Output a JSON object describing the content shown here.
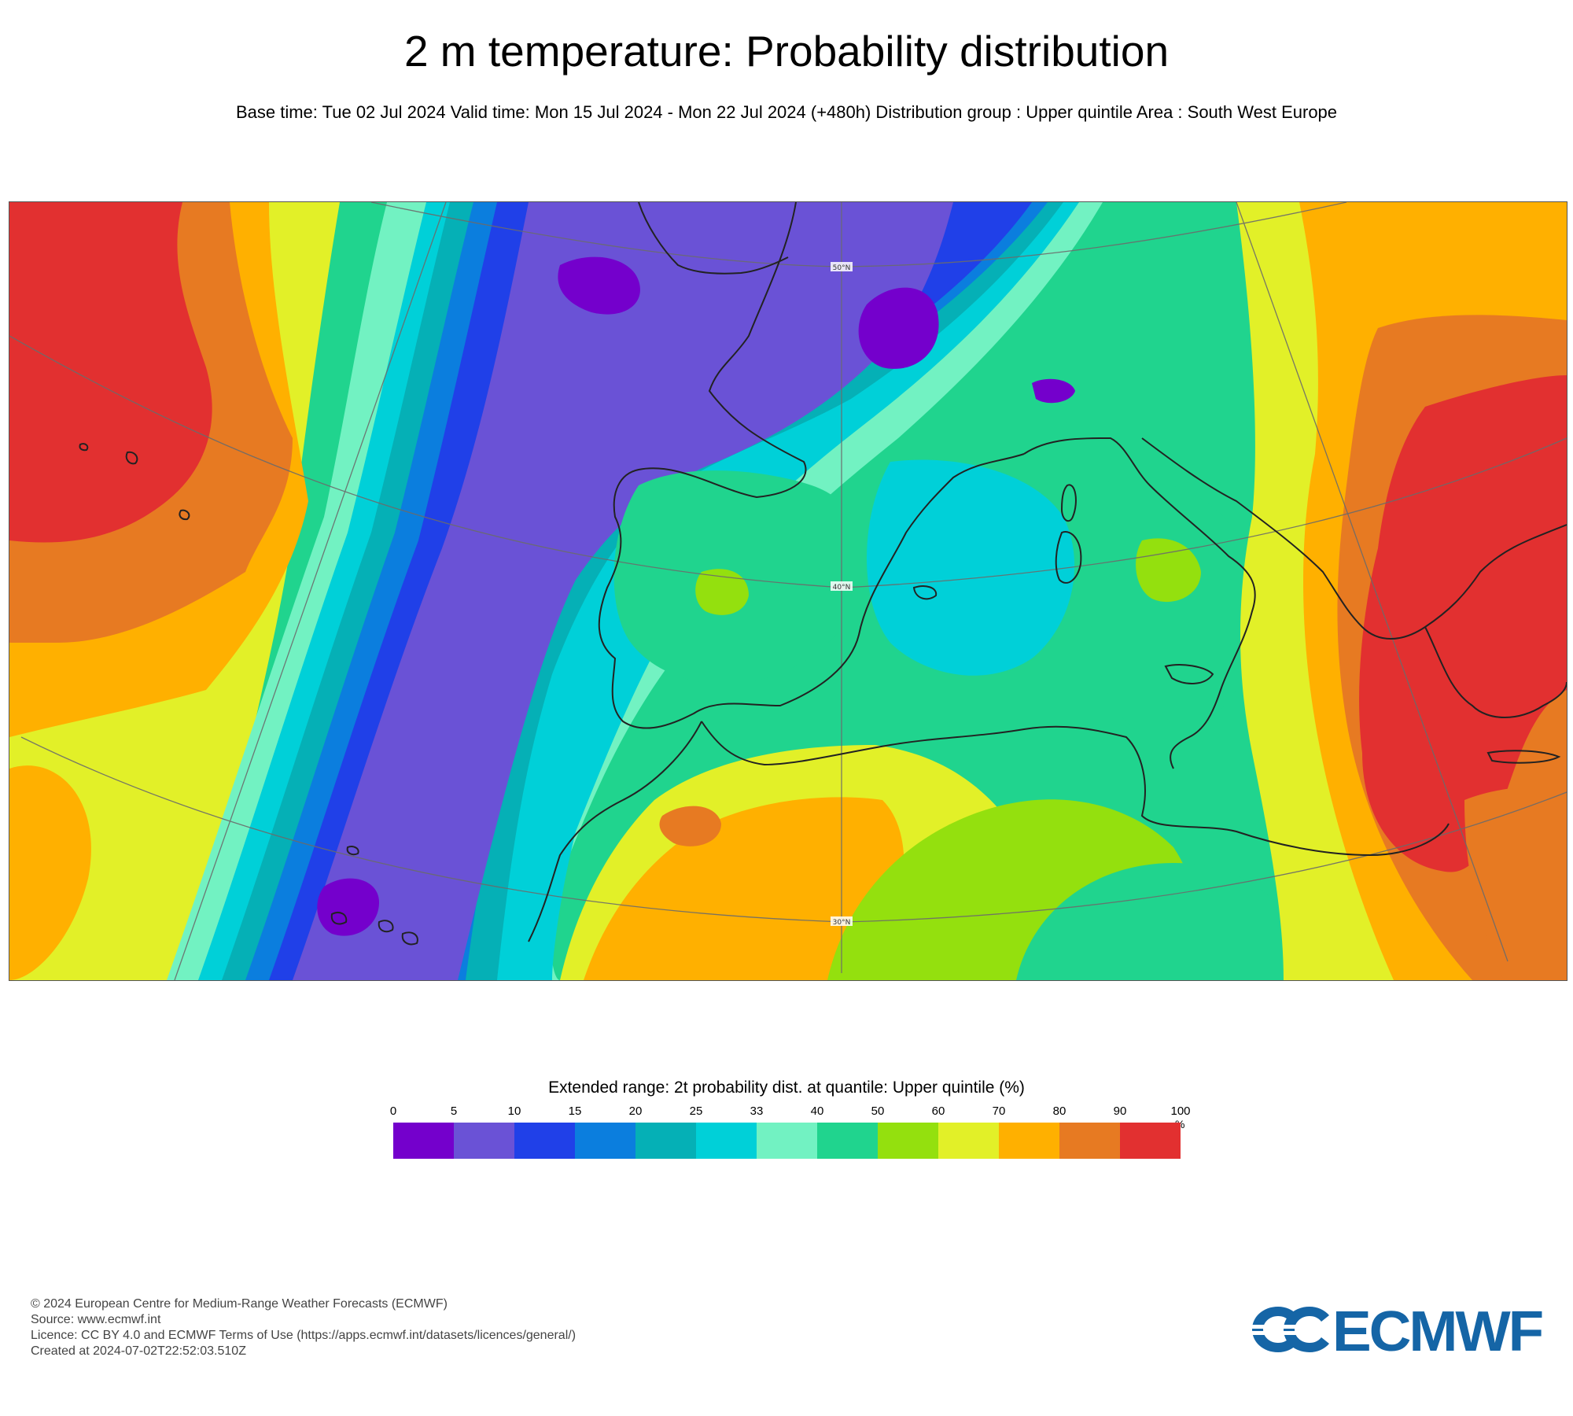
{
  "title": "2 m temperature: Probability distribution",
  "subtitle": "Base time: Tue 02 Jul 2024 Valid time: Mon 15 Jul 2024 - Mon 22 Jul 2024 (+480h) Distribution group : Upper quintile Area : South West Europe",
  "map": {
    "area": "South West Europe",
    "grid_labels": [
      "50°N",
      "40°N",
      "30°N"
    ],
    "colors": {
      "land_outline": "#222222",
      "graticule": "#6b6b6b"
    }
  },
  "legend": {
    "title": "Extended range: 2t probability dist. at quantile: Upper quintile (%)",
    "ticks": [
      "0",
      "5",
      "10",
      "15",
      "20",
      "25",
      "33",
      "40",
      "50",
      "60",
      "70",
      "80",
      "90",
      "100"
    ],
    "unit": "%",
    "colors": [
      "#7400cc",
      "#6a52d6",
      "#2040e8",
      "#0b7ede",
      "#05b0b6",
      "#00d0d8",
      "#72f2c2",
      "#20d48e",
      "#94e00e",
      "#e2f028",
      "#ffb000",
      "#e77a22",
      "#e23030"
    ]
  },
  "footer": {
    "lines": [
      "© 2024 European Centre for Medium-Range Weather Forecasts (ECMWF)",
      "Source: www.ecmwf.int",
      "Licence: CC BY 4.0 and ECMWF Terms of Use (https://apps.ecmwf.int/datasets/licences/general/)",
      "Created at 2024-07-02T22:52:03.510Z"
    ]
  },
  "logo": {
    "text": "ECMWF",
    "color": "#1565a6"
  }
}
